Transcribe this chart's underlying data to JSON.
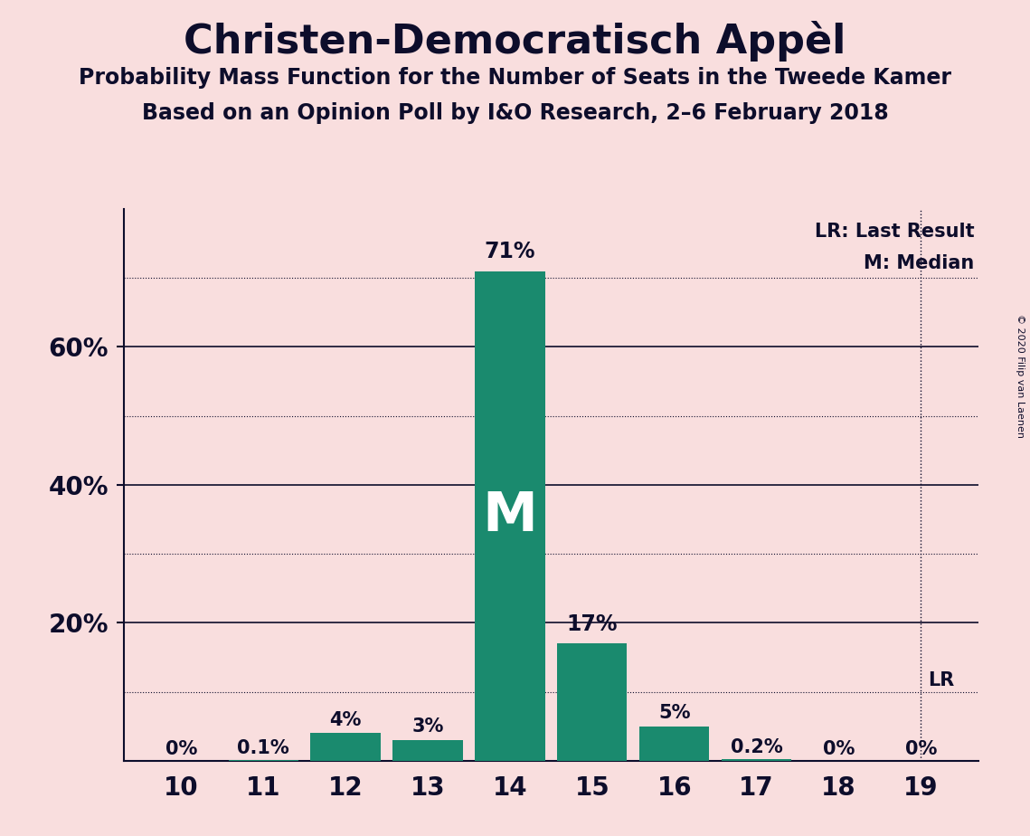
{
  "title": "Christen-Democratisch Appèl",
  "subtitle1": "Probability Mass Function for the Number of Seats in the Tweede Kamer",
  "subtitle2": "Based on an Opinion Poll by I&O Research, 2–6 February 2018",
  "copyright": "© 2020 Filip van Laenen",
  "categories": [
    10,
    11,
    12,
    13,
    14,
    15,
    16,
    17,
    18,
    19
  ],
  "values": [
    0.0,
    0.1,
    4.0,
    3.0,
    71.0,
    17.0,
    5.0,
    0.2,
    0.0,
    0.0
  ],
  "labels": [
    "0%",
    "0.1%",
    "4%",
    "3%",
    "71%",
    "17%",
    "5%",
    "0.2%",
    "0%",
    "0%"
  ],
  "bar_color": "#1a8a6e",
  "background_color": "#f9dede",
  "text_color": "#0d0d2b",
  "median_seat": 14,
  "last_result_seat": 19,
  "last_result_value": 10.0,
  "median_label": "M",
  "ylim": [
    0,
    80
  ],
  "major_ticks": [
    20,
    40,
    60
  ],
  "minor_dotted": [
    10,
    30,
    50,
    70
  ],
  "ytick_labels": [
    [
      20,
      "20%"
    ],
    [
      40,
      "40%"
    ],
    [
      60,
      "60%"
    ]
  ],
  "legend_lr": "LR: Last Result",
  "legend_m": "M: Median"
}
